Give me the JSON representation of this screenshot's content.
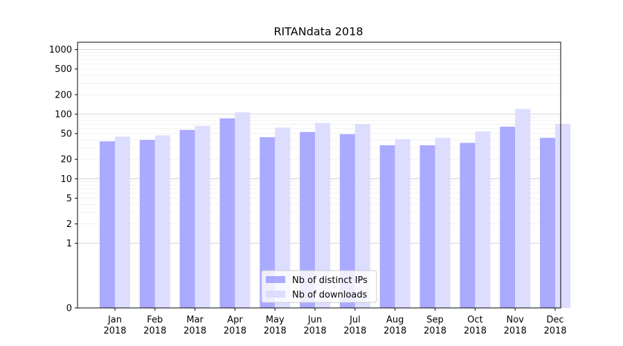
{
  "chart_data": {
    "type": "bar",
    "title": "RITANdata 2018",
    "xlabel": "",
    "ylabel": "",
    "yscale": "symlog",
    "ylim": [
      0,
      1300
    ],
    "y_ticks": [
      0,
      1,
      2,
      5,
      10,
      20,
      50,
      100,
      200,
      500,
      1000
    ],
    "categories": [
      "Jan\n2018",
      "Feb\n2018",
      "Mar\n2018",
      "Apr\n2018",
      "May\n2018",
      "Jun\n2018",
      "Jul\n2018",
      "Aug\n2018",
      "Sep\n2018",
      "Oct\n2018",
      "Nov\n2018",
      "Dec\n2018"
    ],
    "series": [
      {
        "name": "Nb of distinct IPs",
        "color": "#aaaaff",
        "values": [
          38,
          40,
          57,
          86,
          44,
          53,
          49,
          33,
          33,
          36,
          64,
          43
        ]
      },
      {
        "name": "Nb of downloads",
        "color": "#ddddff",
        "values": [
          45,
          47,
          66,
          107,
          62,
          73,
          70,
          41,
          43,
          54,
          121,
          71
        ]
      }
    ],
    "grid": true,
    "legend_position": "lower-center"
  }
}
